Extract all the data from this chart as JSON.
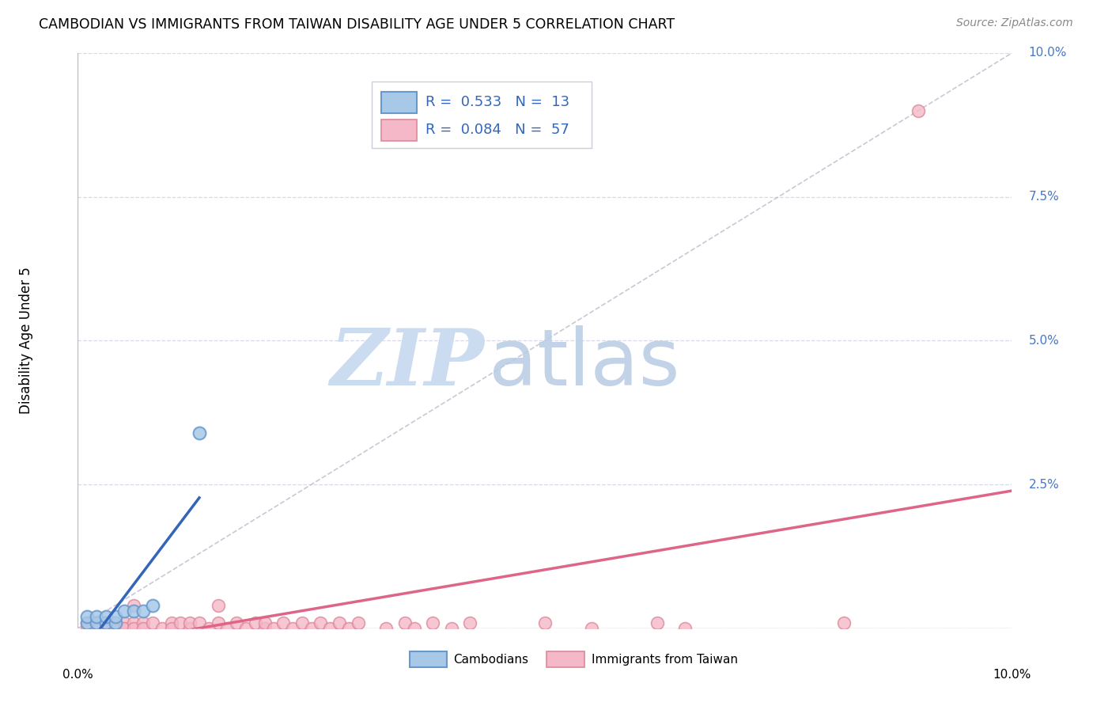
{
  "title": "CAMBODIAN VS IMMIGRANTS FROM TAIWAN DISABILITY AGE UNDER 5 CORRELATION CHART",
  "source": "Source: ZipAtlas.com",
  "ylabel": "Disability Age Under 5",
  "xlim": [
    0.0,
    0.1
  ],
  "ylim": [
    0.0,
    0.1
  ],
  "yticks": [
    0.0,
    0.025,
    0.05,
    0.075,
    0.1
  ],
  "ytick_labels": [
    "",
    "2.5%",
    "5.0%",
    "7.5%",
    "10.0%"
  ],
  "xtick_left": "0.0%",
  "xtick_right": "10.0%",
  "grid_color": "#d8d8e8",
  "background_color": "#ffffff",
  "watermark_zip": "ZIP",
  "watermark_atlas": "atlas",
  "watermark_color": "#ccdcf0",
  "diagonal_color": "#bbbbcc",
  "legend_R_cambodian": "0.533",
  "legend_N_cambodian": "13",
  "legend_R_taiwan": "0.084",
  "legend_N_taiwan": "57",
  "cambodian_face": "#a8c8e8",
  "cambodian_edge": "#6699cc",
  "taiwan_face": "#f4b8c8",
  "taiwan_edge": "#dd8899",
  "regression_cambodian_color": "#3366bb",
  "regression_taiwan_color": "#dd6688",
  "title_fontsize": 12.5,
  "source_fontsize": 10,
  "ylabel_fontsize": 12,
  "tick_fontsize": 11,
  "legend_fontsize": 13,
  "cambodian_x": [
    0.001,
    0.001,
    0.002,
    0.002,
    0.003,
    0.003,
    0.004,
    0.004,
    0.005,
    0.006,
    0.007,
    0.008,
    0.013
  ],
  "cambodian_y": [
    0.001,
    0.002,
    0.001,
    0.002,
    0.001,
    0.002,
    0.001,
    0.002,
    0.003,
    0.003,
    0.003,
    0.004,
    0.034
  ],
  "taiwan_x": [
    0.001,
    0.001,
    0.002,
    0.002,
    0.002,
    0.003,
    0.003,
    0.003,
    0.004,
    0.004,
    0.005,
    0.005,
    0.005,
    0.006,
    0.006,
    0.006,
    0.007,
    0.007,
    0.008,
    0.009,
    0.01,
    0.01,
    0.011,
    0.012,
    0.012,
    0.013,
    0.014,
    0.015,
    0.015,
    0.016,
    0.017,
    0.018,
    0.019,
    0.02,
    0.02,
    0.021,
    0.022,
    0.023,
    0.024,
    0.025,
    0.026,
    0.027,
    0.028,
    0.029,
    0.03,
    0.033,
    0.035,
    0.036,
    0.038,
    0.04,
    0.042,
    0.05,
    0.055,
    0.062,
    0.065,
    0.082,
    0.09
  ],
  "taiwan_y": [
    0.001,
    0.0,
    0.001,
    0.0,
    0.001,
    0.0,
    0.001,
    0.0,
    0.0,
    0.001,
    0.0,
    0.001,
    0.0,
    0.004,
    0.001,
    0.0,
    0.001,
    0.0,
    0.001,
    0.0,
    0.001,
    0.0,
    0.001,
    0.0,
    0.001,
    0.001,
    0.0,
    0.004,
    0.001,
    0.0,
    0.001,
    0.0,
    0.001,
    0.0,
    0.001,
    0.0,
    0.001,
    0.0,
    0.001,
    0.0,
    0.001,
    0.0,
    0.001,
    0.0,
    0.001,
    0.0,
    0.001,
    0.0,
    0.001,
    0.0,
    0.001,
    0.001,
    0.0,
    0.001,
    0.0,
    0.001,
    0.09
  ]
}
